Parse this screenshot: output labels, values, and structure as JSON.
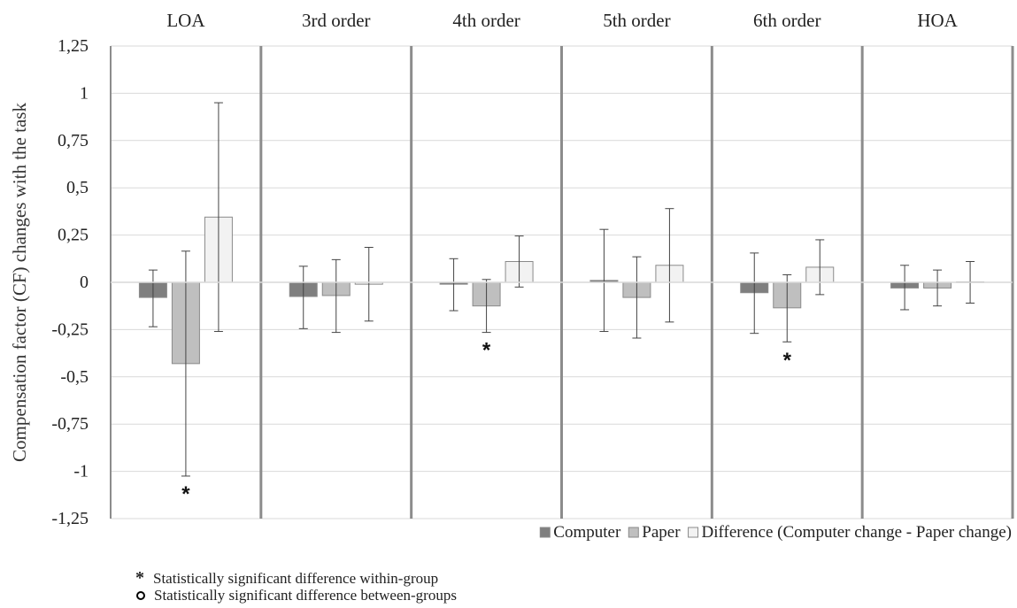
{
  "chart_data": {
    "type": "bar",
    "categories": [
      "LOA",
      "3rd order",
      "4th order",
      "5th order",
      "6th order",
      "HOA"
    ],
    "ylabel": "Compensation factor (CF) changes with the task",
    "ylim": [
      -1.25,
      1.25
    ],
    "yticks": [
      "1,25",
      "1",
      "0,75",
      "0,5",
      "0,25",
      "0",
      "-0,25",
      "-0,5",
      "-0,75",
      "-1",
      "-1,25"
    ],
    "ytick_values": [
      1.25,
      1,
      0.75,
      0.5,
      0.25,
      0,
      -0.25,
      -0.5,
      -0.75,
      -1,
      -1.25
    ],
    "grid": true,
    "legend_position": "bottom-right",
    "series": [
      {
        "name": "Computer",
        "color": "#7f7f7f",
        "values": [
          -0.08,
          -0.075,
          -0.01,
          0.01,
          -0.055,
          -0.03
        ],
        "err_low": [
          -0.235,
          -0.245,
          -0.15,
          -0.26,
          -0.27,
          -0.145
        ],
        "err_high": [
          0.065,
          0.085,
          0.125,
          0.28,
          0.155,
          0.09
        ]
      },
      {
        "name": "Paper",
        "color": "#bfbfbf",
        "values": [
          -0.43,
          -0.07,
          -0.125,
          -0.08,
          -0.135,
          -0.03
        ],
        "err_low": [
          -1.025,
          -0.265,
          -0.265,
          -0.295,
          -0.315,
          -0.125
        ],
        "err_high": [
          0.165,
          0.12,
          0.015,
          0.135,
          0.04,
          0.065
        ]
      },
      {
        "name": "Difference (Computer change - Paper change)",
        "color": "#f2f2f2",
        "values": [
          0.345,
          -0.01,
          0.11,
          0.09,
          0.08,
          0.002
        ],
        "err_low": [
          -0.26,
          -0.205,
          -0.025,
          -0.21,
          -0.065,
          -0.11
        ],
        "err_high": [
          0.95,
          0.185,
          0.245,
          0.39,
          0.225,
          0.11
        ]
      }
    ],
    "annotations": [
      {
        "symbol": "*",
        "category": "LOA",
        "series": "Paper",
        "y": -1.09
      },
      {
        "symbol": "*",
        "category": "4th order",
        "series": "Paper",
        "y": -0.33
      },
      {
        "symbol": "*",
        "category": "6th order",
        "series": "Paper",
        "y": -0.385
      }
    ]
  },
  "footnotes": {
    "within_symbol": "*",
    "within_text": "Statistically significant difference within-group",
    "between_text": "Statistically significant difference between-groups"
  }
}
